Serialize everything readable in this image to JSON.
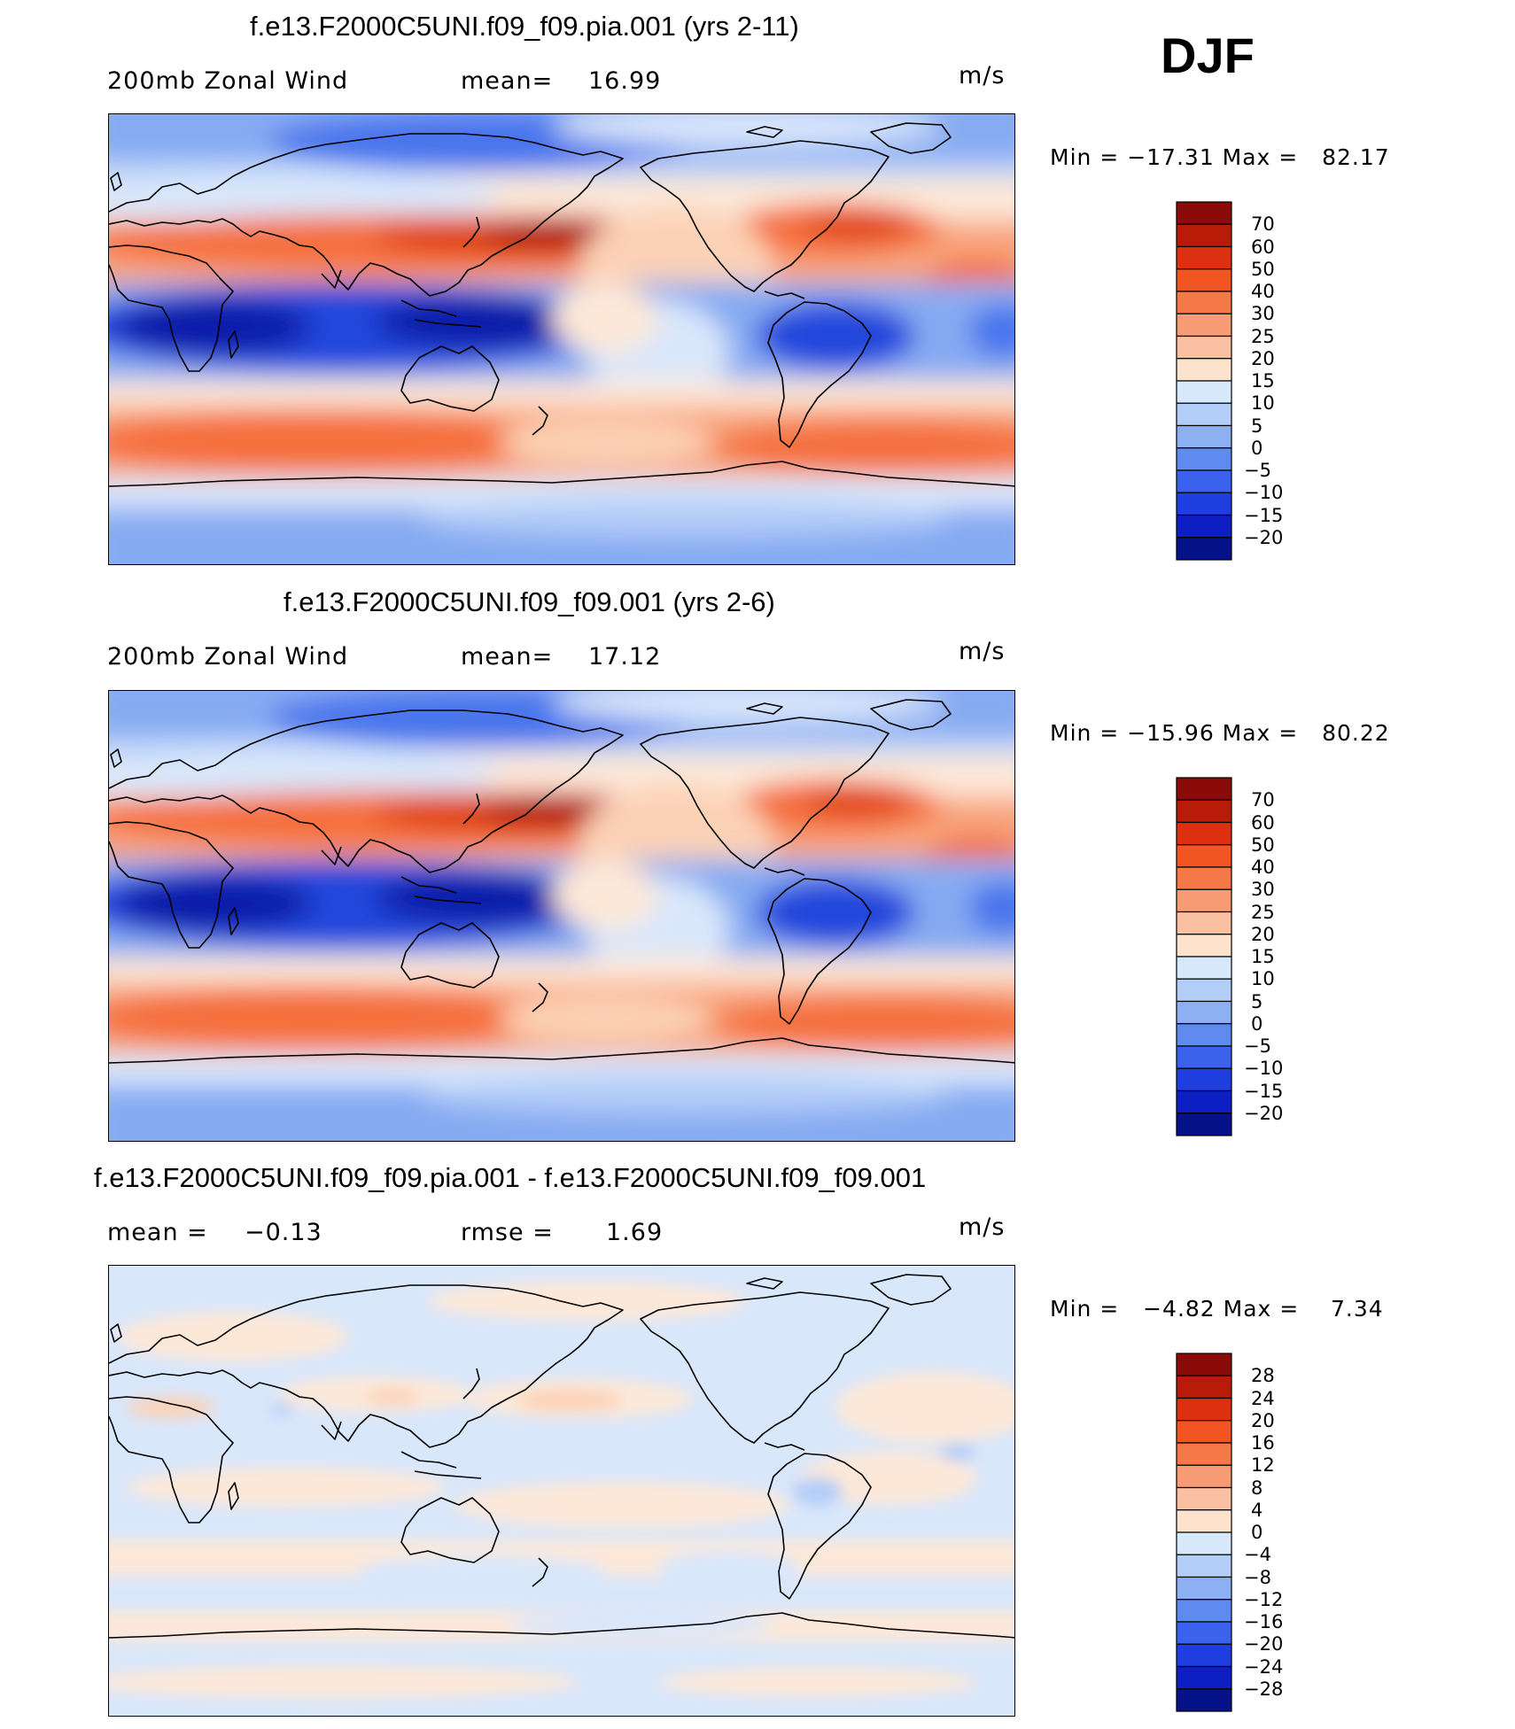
{
  "season": "DJF",
  "panels": [
    {
      "title": "f.e13.F2000C5UNI.f09_f09.pia.001 (yrs 2-11)",
      "left_label": "200mb Zonal Wind",
      "stat1_label": "mean=",
      "stat1_value": "16.99",
      "stat2_label": "",
      "stat2_value": "",
      "units": "m/s",
      "min_max": "Min = −17.31 Max =   82.17",
      "colorbar_labels": [
        "70",
        "60",
        "50",
        "40",
        "30",
        "25",
        "20",
        "15",
        "10",
        "5",
        "0",
        "−5",
        "−10",
        "−15",
        "−20"
      ],
      "colorbar_colors": [
        "#8b0a0a",
        "#b81c08",
        "#dc3010",
        "#f25522",
        "#f57848",
        "#f79b74",
        "#fac0a2",
        "#fde2cd",
        "#d8e8fb",
        "#b2cdf8",
        "#8db0f3",
        "#5f8aef",
        "#3a62ec",
        "#1f3ee0",
        "#0d1fc2",
        "#06128a"
      ],
      "map_variant": "full"
    },
    {
      "title": "f.e13.F2000C5UNI.f09_f09.001 (yrs 2-6)",
      "left_label": "200mb Zonal Wind",
      "stat1_label": "mean=",
      "stat1_value": "17.12",
      "stat2_label": "",
      "stat2_value": "",
      "units": "m/s",
      "min_max": "Min = −15.96 Max =   80.22",
      "colorbar_labels": [
        "70",
        "60",
        "50",
        "40",
        "30",
        "25",
        "20",
        "15",
        "10",
        "5",
        "0",
        "−5",
        "−10",
        "−15",
        "−20"
      ],
      "colorbar_colors": [
        "#8b0a0a",
        "#b81c08",
        "#dc3010",
        "#f25522",
        "#f57848",
        "#f79b74",
        "#fac0a2",
        "#fde2cd",
        "#d8e8fb",
        "#b2cdf8",
        "#8db0f3",
        "#5f8aef",
        "#3a62ec",
        "#1f3ee0",
        "#0d1fc2",
        "#06128a"
      ],
      "map_variant": "full"
    },
    {
      "title": "f.e13.F2000C5UNI.f09_f09.pia.001 - f.e13.F2000C5UNI.f09_f09.001",
      "left_label": "",
      "stat1_label": "mean =",
      "stat1_value": "−0.13",
      "stat2_label": "rmse =",
      "stat2_value": "1.69",
      "units": "m/s",
      "min_max": "Min =   −4.82 Max =    7.34",
      "colorbar_labels": [
        "28",
        "24",
        "20",
        "16",
        "12",
        "8",
        "4",
        "0",
        "−4",
        "−8",
        "−12",
        "−16",
        "−20",
        "−24",
        "−28"
      ],
      "colorbar_colors": [
        "#8b0a0a",
        "#b81c08",
        "#dc3010",
        "#f25522",
        "#f57848",
        "#f79b74",
        "#fac0a2",
        "#fde2cd",
        "#d8e8fb",
        "#b2cdf8",
        "#8db0f3",
        "#5f8aef",
        "#3a62ec",
        "#1f3ee0",
        "#0d1fc2",
        "#06128a"
      ],
      "map_variant": "diff"
    }
  ],
  "palette": {
    "dark_red": "#a8180c",
    "red": "#e04418",
    "orange": "#f5703c",
    "salmon": "#f8a57e",
    "peach": "#fcd2b6",
    "cream": "#fde8d8",
    "pale_blue": "#d9e7fb",
    "light_blue": "#b3cdf8",
    "mid_blue": "#86aaf2",
    "blue": "#4a74ec",
    "deep_blue": "#2347dc",
    "navy": "#0d1fa8"
  }
}
